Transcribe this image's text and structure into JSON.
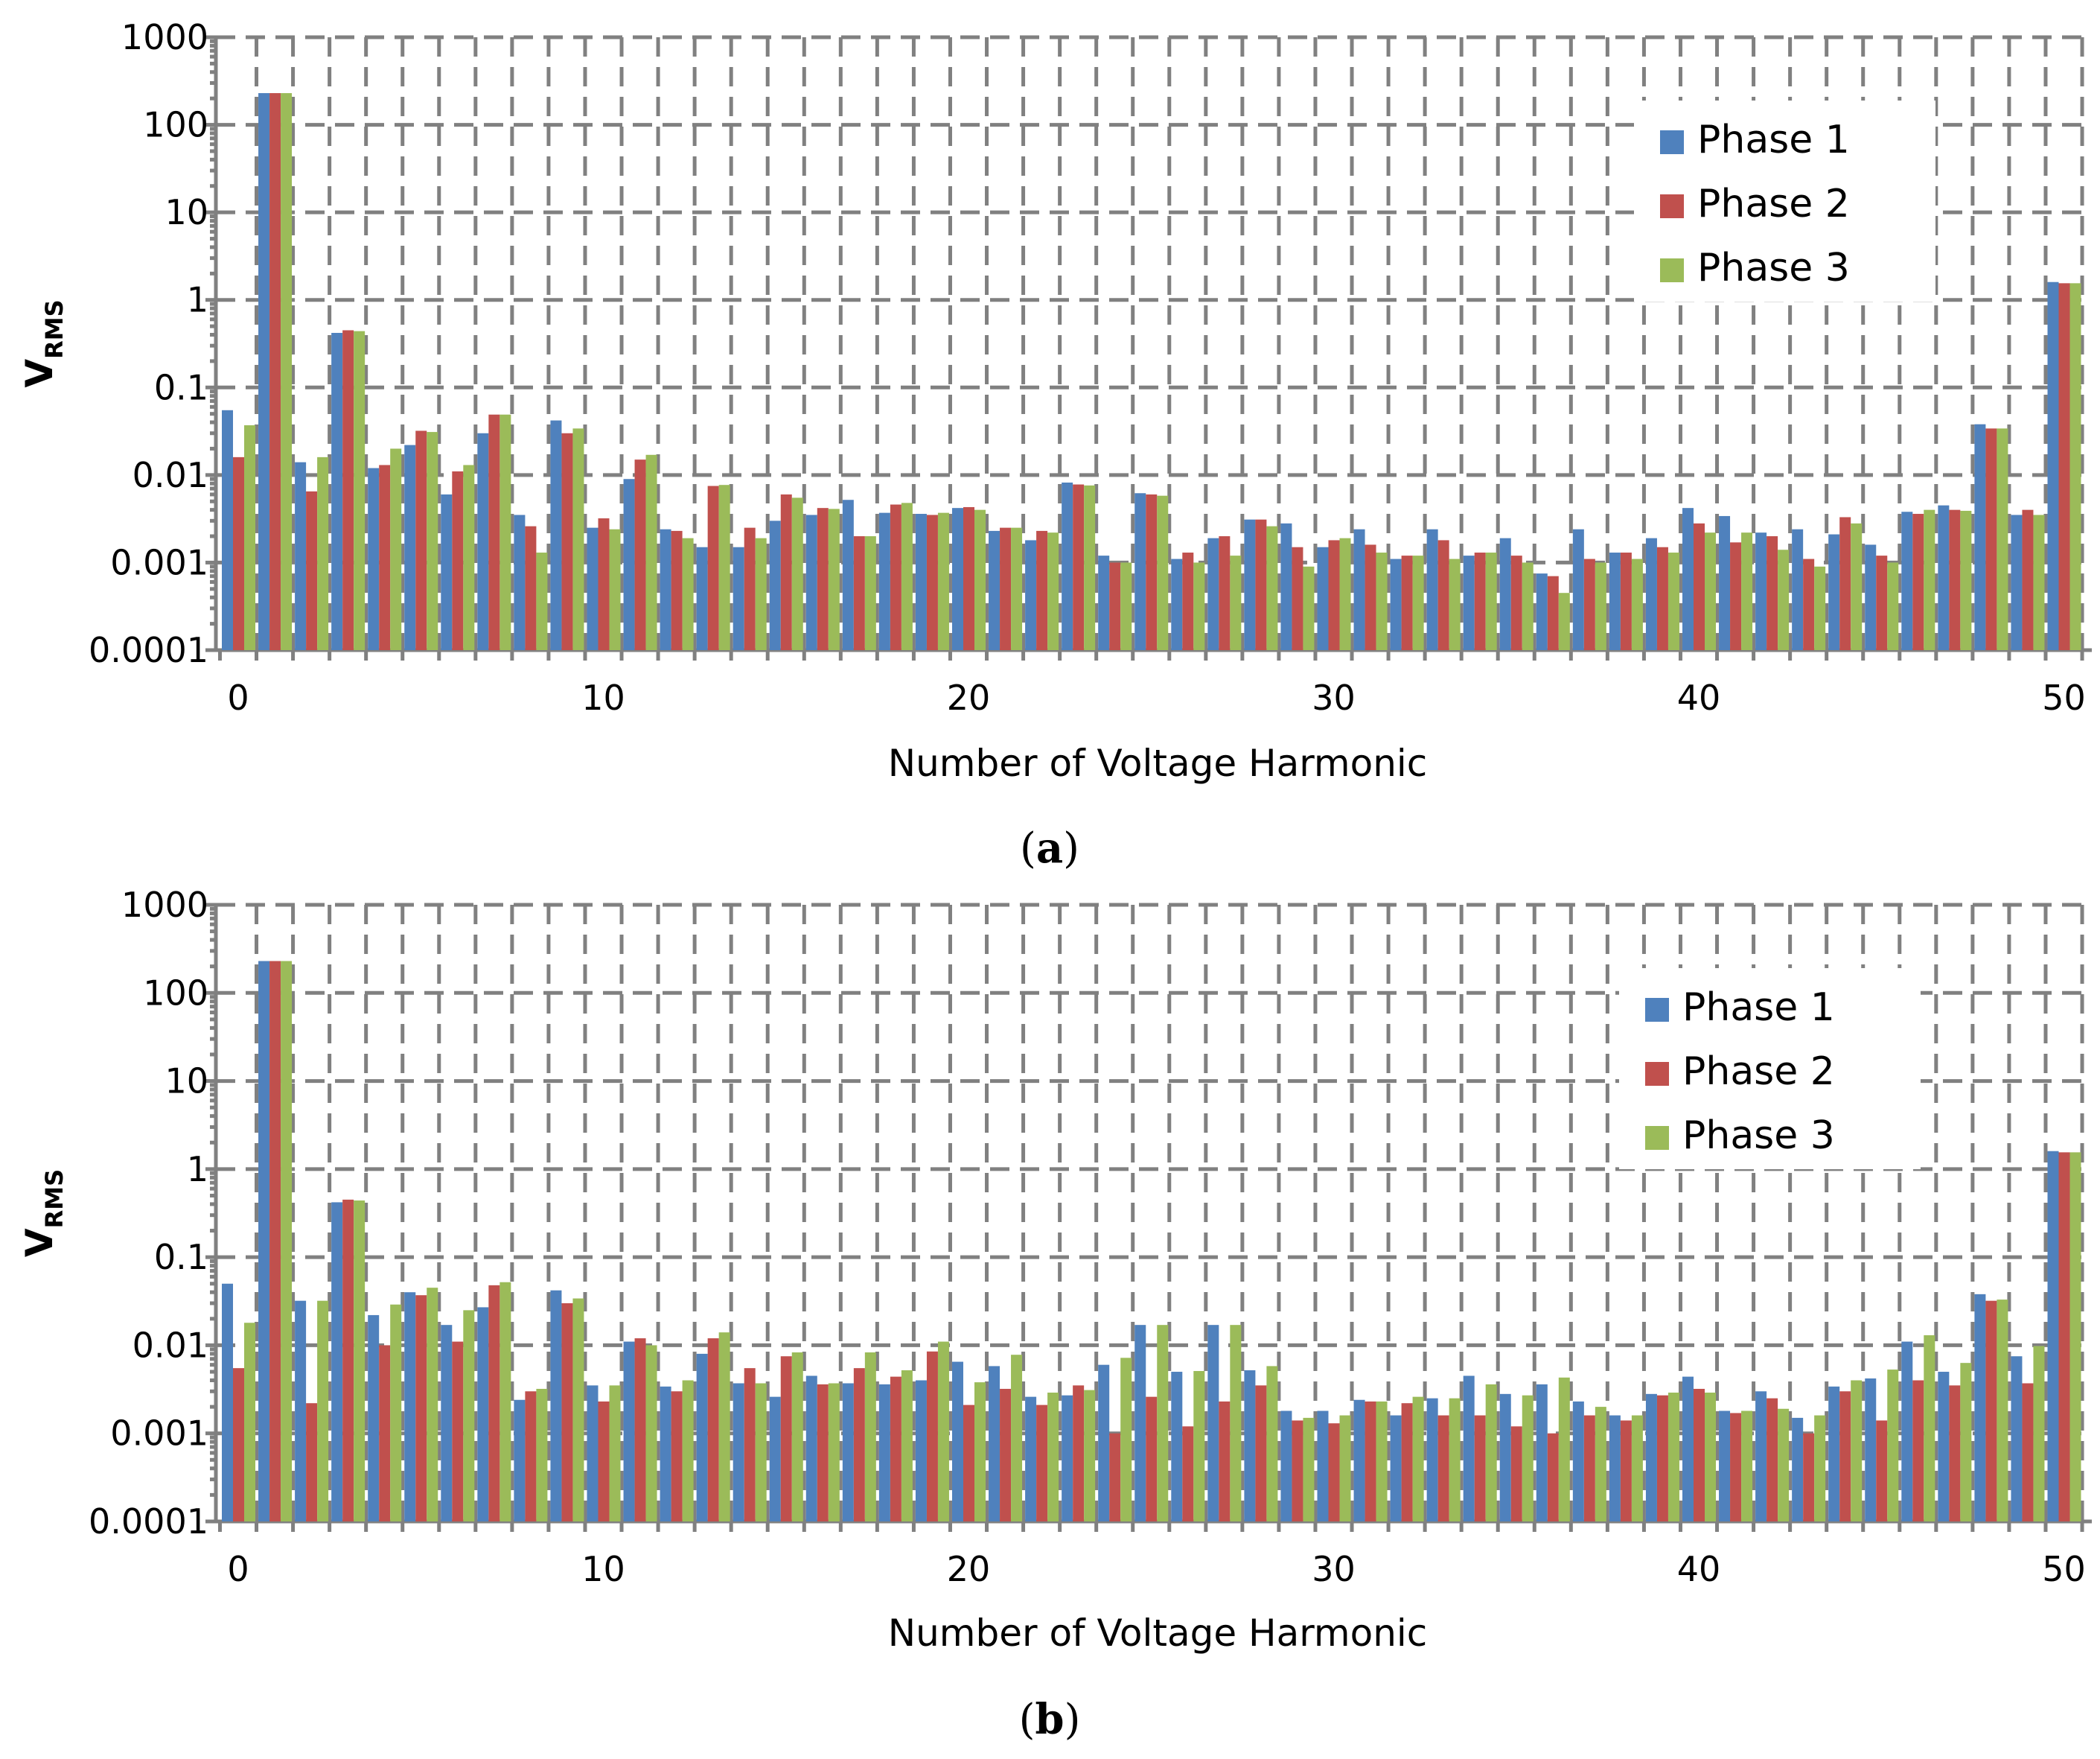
{
  "figure": {
    "panels": [
      {
        "label_open": "(",
        "label_letter": "a",
        "label_close": ")"
      },
      {
        "label_open": "(",
        "label_letter": "b",
        "label_close": ")"
      }
    ]
  },
  "colors": {
    "Phase 1": "#4F81BD",
    "Phase 2": "#C0504D",
    "Phase 3": "#9BBB59"
  },
  "chart_data": [
    {
      "type": "bar",
      "panel": "a",
      "xlabel": "Number of Voltage Harmonic",
      "ylabel_main": "V",
      "ylabel_sub": "RMS",
      "y_scale": "log",
      "ylim": [
        0.0001,
        1000
      ],
      "yticks": [
        "1000",
        "100",
        "10",
        "1",
        "0.1",
        "0.01",
        "0.001",
        "0.0001"
      ],
      "xticks": [
        "0",
        "10",
        "20",
        "30",
        "40",
        "50"
      ],
      "grid": true,
      "legend_position": "top-right",
      "categories": [
        0,
        1,
        2,
        3,
        4,
        5,
        6,
        7,
        8,
        9,
        10,
        11,
        12,
        13,
        14,
        15,
        16,
        17,
        18,
        19,
        20,
        21,
        22,
        23,
        24,
        25,
        26,
        27,
        28,
        29,
        30,
        31,
        32,
        33,
        34,
        35,
        36,
        37,
        38,
        39,
        40,
        41,
        42,
        43,
        44,
        45,
        46,
        47,
        48,
        49,
        50
      ],
      "series": [
        {
          "name": "Phase 1",
          "values": [
            0.055,
            230,
            0.014,
            0.42,
            0.012,
            0.022,
            0.006,
            0.03,
            0.0035,
            0.042,
            0.0025,
            0.009,
            0.0024,
            0.0015,
            0.0015,
            0.003,
            0.0035,
            0.0052,
            0.0037,
            0.0036,
            0.0042,
            0.0023,
            0.0018,
            0.0082,
            0.0012,
            0.0062,
            0.0011,
            0.0019,
            0.0031,
            0.0028,
            0.0015,
            0.0024,
            0.0011,
            0.0024,
            0.0012,
            0.0019,
            0.00075,
            0.0024,
            0.0013,
            0.0019,
            0.0042,
            0.0034,
            0.0022,
            0.0024,
            0.0021,
            0.0016,
            0.0038,
            0.0045,
            0.038,
            0.0035,
            1.6
          ]
        },
        {
          "name": "Phase 2",
          "values": [
            0.016,
            230,
            0.0065,
            0.45,
            0.013,
            0.032,
            0.011,
            0.049,
            0.0026,
            0.03,
            0.0032,
            0.015,
            0.0023,
            0.0075,
            0.0025,
            0.006,
            0.0042,
            0.002,
            0.0046,
            0.0035,
            0.0043,
            0.0025,
            0.0023,
            0.0078,
            0.001,
            0.006,
            0.0013,
            0.002,
            0.0031,
            0.0015,
            0.0018,
            0.0016,
            0.0012,
            0.0018,
            0.0013,
            0.0012,
            0.0007,
            0.0011,
            0.0013,
            0.0015,
            0.0028,
            0.0017,
            0.002,
            0.0011,
            0.0033,
            0.0012,
            0.0036,
            0.004,
            0.034,
            0.004,
            1.55
          ]
        },
        {
          "name": "Phase 3",
          "values": [
            0.037,
            230,
            0.016,
            0.44,
            0.02,
            0.031,
            0.013,
            0.049,
            0.0013,
            0.034,
            0.0024,
            0.017,
            0.0019,
            0.0077,
            0.0019,
            0.0055,
            0.0041,
            0.002,
            0.0048,
            0.0037,
            0.004,
            0.0025,
            0.0022,
            0.0076,
            0.001,
            0.0058,
            0.001,
            0.0012,
            0.0026,
            0.0009,
            0.0019,
            0.0013,
            0.0012,
            0.0011,
            0.0013,
            0.001,
            0.00045,
            0.001,
            0.0011,
            0.0013,
            0.0022,
            0.0022,
            0.0014,
            0.0009,
            0.0028,
            0.001,
            0.004,
            0.0039,
            0.034,
            0.0035,
            1.55
          ]
        }
      ]
    },
    {
      "type": "bar",
      "panel": "b",
      "xlabel": "Number of Voltage Harmonic",
      "ylabel_main": "V",
      "ylabel_sub": "RMS",
      "y_scale": "log",
      "ylim": [
        0.0001,
        1000
      ],
      "yticks": [
        "1000",
        "100",
        "10",
        "1",
        "0.1",
        "0.01",
        "0.001",
        "0.0001"
      ],
      "xticks": [
        "0",
        "10",
        "20",
        "30",
        "40",
        "50"
      ],
      "grid": true,
      "legend_position": "top-right",
      "categories": [
        0,
        1,
        2,
        3,
        4,
        5,
        6,
        7,
        8,
        9,
        10,
        11,
        12,
        13,
        14,
        15,
        16,
        17,
        18,
        19,
        20,
        21,
        22,
        23,
        24,
        25,
        26,
        27,
        28,
        29,
        30,
        31,
        32,
        33,
        34,
        35,
        36,
        37,
        38,
        39,
        40,
        41,
        42,
        43,
        44,
        45,
        46,
        47,
        48,
        49,
        50
      ],
      "series": [
        {
          "name": "Phase 1",
          "values": [
            0.05,
            230,
            0.032,
            0.42,
            0.022,
            0.04,
            0.017,
            0.027,
            0.0024,
            0.042,
            0.0035,
            0.011,
            0.0034,
            0.008,
            0.0037,
            0.0026,
            0.0045,
            0.0037,
            0.0036,
            0.004,
            0.0065,
            0.0058,
            0.0026,
            0.0027,
            0.006,
            0.017,
            0.005,
            0.017,
            0.0052,
            0.0018,
            0.0018,
            0.0024,
            0.0016,
            0.0025,
            0.0045,
            0.0028,
            0.0036,
            0.0023,
            0.0016,
            0.0028,
            0.0044,
            0.0018,
            0.003,
            0.0015,
            0.0034,
            0.0042,
            0.011,
            0.005,
            0.038,
            0.0075,
            1.6
          ]
        },
        {
          "name": "Phase 2",
          "values": [
            0.0055,
            230,
            0.0022,
            0.45,
            0.01,
            0.037,
            0.011,
            0.048,
            0.003,
            0.03,
            0.0023,
            0.012,
            0.003,
            0.012,
            0.0055,
            0.0075,
            0.0036,
            0.0055,
            0.0044,
            0.0085,
            0.0021,
            0.0032,
            0.0021,
            0.0035,
            0.001,
            0.0026,
            0.0012,
            0.0023,
            0.0035,
            0.0014,
            0.0013,
            0.0023,
            0.0022,
            0.0016,
            0.0016,
            0.0012,
            0.001,
            0.0016,
            0.0014,
            0.0027,
            0.0032,
            0.0017,
            0.0025,
            0.001,
            0.003,
            0.0014,
            0.004,
            0.0035,
            0.032,
            0.0037,
            1.55
          ]
        },
        {
          "name": "Phase 3",
          "values": [
            0.018,
            230,
            0.032,
            0.44,
            0.029,
            0.045,
            0.025,
            0.052,
            0.0032,
            0.034,
            0.0035,
            0.01,
            0.004,
            0.014,
            0.0037,
            0.0083,
            0.0037,
            0.0083,
            0.0052,
            0.011,
            0.0038,
            0.0078,
            0.0029,
            0.0031,
            0.0072,
            0.017,
            0.0051,
            0.017,
            0.0058,
            0.0015,
            0.0016,
            0.0023,
            0.0026,
            0.0025,
            0.0036,
            0.0027,
            0.0043,
            0.002,
            0.0016,
            0.0029,
            0.0029,
            0.0018,
            0.0019,
            0.0016,
            0.004,
            0.0053,
            0.013,
            0.0063,
            0.033,
            0.0098,
            1.55
          ]
        }
      ]
    }
  ]
}
